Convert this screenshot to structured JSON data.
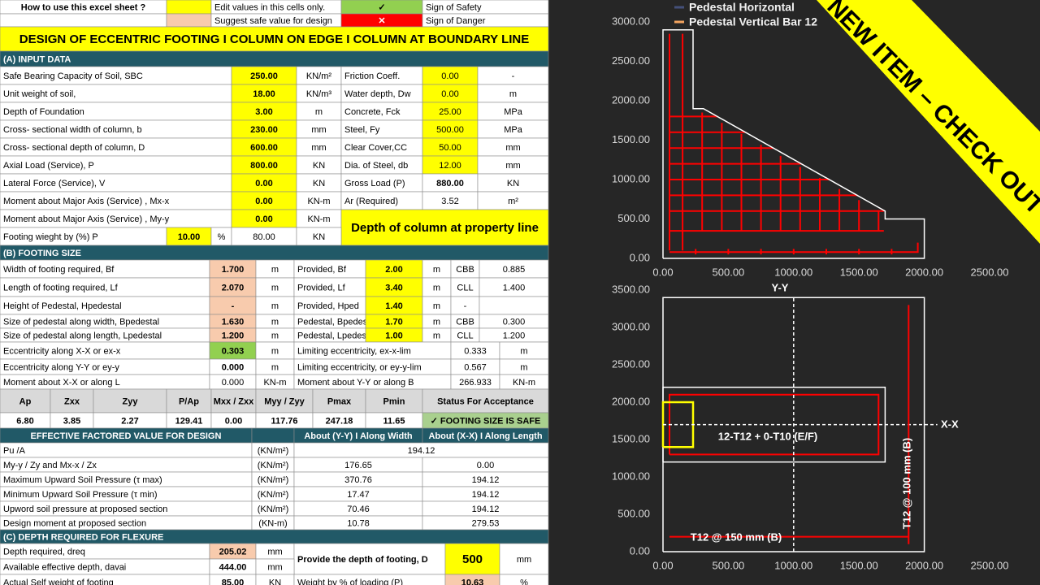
{
  "banner": "NEW ITEM – CHECK OUT",
  "sheet": {
    "rows": [
      [
        "How to use this excel sheet ?",
        "Edit values in this cells only.",
        "✓",
        "Sign of Safety"
      ],
      [
        "Suggest safe value for design",
        "✕",
        "Sign of Danger"
      ],
      [
        "DESIGN OF ECCENTRIC FOOTING I COLUMN ON EDGE I COLUMN AT BOUNDARY LINE"
      ],
      [
        "(A) INPUT DATA"
      ],
      [
        "Safe Bearing Capacity of Soil, SBC",
        "250.00",
        "KN/m²",
        "Friction Coeff.",
        "0.00",
        "-"
      ],
      [
        "Unit weight of soil,",
        "18.00",
        "KN/m³",
        "Water depth, Dw",
        "0.00",
        "m"
      ],
      [
        "Depth of Foundation",
        "3.00",
        "m",
        "Concrete, Fck",
        "25.00",
        "MPa"
      ],
      [
        "Cross- sectional width of column, b",
        "230.00",
        "mm",
        "Steel, Fy",
        "500.00",
        "MPa"
      ],
      [
        "Cross- sectional depth of column, D",
        "600.00",
        "mm",
        "Clear Cover,CC",
        "50.00",
        "mm"
      ],
      [
        "Axial Load (Service), P",
        "800.00",
        "KN",
        "Dia. of Steel, db",
        "12.00",
        "mm"
      ],
      [
        "Lateral Force (Service), V",
        "0.00",
        "KN",
        "Gross Load (P)",
        "880.00",
        "KN"
      ],
      [
        "Moment about Major Axis (Service) , Mx-x",
        "0.00",
        "KN-m",
        "Ar (Required)",
        "3.52",
        "m²"
      ],
      [
        "Moment about Major Axis (Service) , My-y",
        "0.00",
        "KN-m",
        "Depth of column at property line"
      ],
      [
        "Footing wieght by (%) P",
        "10.00",
        "%",
        "80.00",
        "KN"
      ],
      [
        "(B) FOOTING SIZE"
      ],
      [
        "Width of footing required, Bf",
        "1.700",
        "m",
        "Provided, Bf",
        "2.00",
        "m",
        "CBB",
        "0.885"
      ],
      [
        "Length of footing required, Lf",
        "2.070",
        "m",
        "Provided, Lf",
        "3.40",
        "m",
        "CLL",
        "1.400"
      ],
      [
        "Height of Pedestal, Hpedestal",
        "-",
        "m",
        "Provided, Hped",
        "1.40",
        "m",
        "-"
      ],
      [
        "Size of pedestal along width, Bpedestal",
        "1.630",
        "m",
        "Pedestal, Bpedestal",
        "1.70",
        "m",
        "CBB",
        "0.300"
      ],
      [
        "Size of pedestal along length, Lpedestal",
        "1.200",
        "m",
        "Pedestal, Lpedestal",
        "1.00",
        "m",
        "CLL",
        "1.200"
      ],
      [
        "Eccentricity along X-X or ex-x",
        "0.303",
        "m",
        "Limiting eccentricity, ex-x-lim",
        "0.333",
        "m"
      ],
      [
        "Eccentricity along Y-Y or ey-y",
        "0.000",
        "m",
        "Limiting eccentricity, or ey-y-lim",
        "0.567",
        "m"
      ],
      [
        "Moment about X-X or along L",
        "0.000",
        "KN-m",
        "Moment about Y-Y or along B",
        "266.933",
        "KN-m"
      ],
      [
        "Ap",
        "Zxx",
        "Zyy",
        "P/Ap",
        "Mxx / Zxx",
        "Myy / Zyy",
        "Pmax",
        "Pmin",
        "Status For Acceptance"
      ],
      [
        "6.80",
        "3.85",
        "2.27",
        "129.41",
        "0.00",
        "117.76",
        "247.18",
        "11.65",
        "✓ FOOTING SIZE IS SAFE"
      ],
      [
        "EFFECTIVE FACTORED VALUE FOR DESIGN",
        "About (Y-Y) I Along Width",
        "About (X-X) I Along Length"
      ],
      [
        "Pu /A",
        "(KN/m²)",
        "194.12"
      ],
      [
        "My-y / Zy and Mx-x / Zx",
        "(KN/m²)",
        "176.65",
        "0.00"
      ],
      [
        "Maximum Upward Soil Pressure (τ max)",
        "(KN/m²)",
        "370.76",
        "194.12"
      ],
      [
        "Minimum Upward Soil Pressure (τ min)",
        "(KN/m²)",
        "17.47",
        "194.12"
      ],
      [
        "Upword soil pressure at proposed section",
        "(KN/m²)",
        "70.46",
        "194.12"
      ],
      [
        "Design moment at proposed section",
        "(KN-m)",
        "10.78",
        "279.53"
      ],
      [
        "(C) DEPTH REQUIRED FOR FLEXURE"
      ],
      [
        "Depth required, dreq",
        "205.02",
        "mm",
        "Provide the depth of footing, D",
        "500",
        "mm"
      ],
      [
        "Available effective depth, davai",
        "444.00",
        "mm"
      ],
      [
        "Actual Self weight of footing",
        "85.00",
        "KN",
        "Weight by % of loading (P)",
        "10.63",
        "%"
      ]
    ]
  },
  "chart_data": [
    {
      "type": "line",
      "xlim": [
        0,
        2500
      ],
      "xticks": [
        {
          "value": 0,
          "label": "0.00"
        },
        {
          "value": 500,
          "label": "500.00"
        },
        {
          "value": 1000,
          "label": "1000.00"
        },
        {
          "value": 1500,
          "label": "1500.00"
        },
        {
          "value": 2000,
          "label": "2000.00"
        },
        {
          "value": 2500,
          "label": "2500.00"
        }
      ],
      "ylim": [
        0,
        3000
      ],
      "yticks": [
        {
          "value": 0,
          "label": "0.00"
        },
        {
          "value": 500,
          "label": "500.00"
        },
        {
          "value": 1000,
          "label": "1000.00"
        },
        {
          "value": 1500,
          "label": "1500.00"
        },
        {
          "value": 2000,
          "label": "2000.00"
        },
        {
          "value": 2500,
          "label": "2500.00"
        },
        {
          "value": 3000,
          "label": "3000.00"
        }
      ],
      "series": [
        {
          "name": "Pedestal Horizontal",
          "color": "#ff0000",
          "marker_color": "#44507a",
          "x": [
            50,
            420,
            null,
            50,
            630,
            null,
            50,
            845,
            null,
            50,
            1060,
            null,
            50,
            1270,
            null,
            50,
            1490,
            null,
            50,
            1690,
            null,
            50,
            1690
          ],
          "values": [
            1800,
            1800,
            null,
            1600,
            1600,
            null,
            1400,
            1400,
            null,
            1200,
            1200,
            null,
            1000,
            1000,
            null,
            800,
            800,
            null,
            600,
            600,
            null,
            350,
            350
          ]
        },
        {
          "name": "Pedestal Vertical Bar 12",
          "color": "#ff0000",
          "marker_color": "#f4a460",
          "x": [
            50,
            50,
            null,
            150,
            150,
            null,
            300,
            300,
            null,
            450,
            450,
            null,
            600,
            600,
            null,
            750,
            750,
            null,
            900,
            900,
            null,
            1050,
            1050,
            null,
            1200,
            1200,
            null,
            1350,
            1350,
            null,
            1500,
            1500,
            null,
            1650,
            1650
          ],
          "values": [
            100,
            2850,
            null,
            100,
            2850,
            null,
            350,
            1850,
            null,
            350,
            1720,
            null,
            350,
            1580,
            null,
            350,
            1440,
            null,
            350,
            1300,
            null,
            350,
            1160,
            null,
            350,
            1020,
            null,
            350,
            880,
            null,
            350,
            740,
            null,
            350,
            610
          ]
        },
        {
          "color": "#ffffff",
          "x": [
            0,
            2000,
            2000,
            1700,
            1700,
            310,
            230,
            230,
            0,
            0
          ],
          "values": [
            0,
            0,
            500,
            500,
            600,
            1900,
            1900,
            2900,
            2900,
            0
          ]
        },
        {
          "color": "#ff0000",
          "x": [
            50,
            1950,
            1950,
            null,
            250,
            250,
            null,
            500,
            500,
            null,
            750,
            750,
            null,
            1000,
            1000,
            null,
            1250,
            1250,
            null,
            1500,
            1500,
            null,
            1750,
            1750
          ],
          "values": [
            80,
            80,
            200,
            null,
            50,
            120,
            null,
            50,
            120,
            null,
            50,
            120,
            null,
            50,
            120,
            null,
            50,
            120,
            null,
            50,
            120,
            null,
            50,
            120
          ]
        }
      ]
    },
    {
      "type": "line",
      "xlim": [
        0,
        2500
      ],
      "xticks": [
        {
          "value": 0,
          "label": "0.00"
        },
        {
          "value": 500,
          "label": "500.00"
        },
        {
          "value": 1000,
          "label": "1000.00"
        },
        {
          "value": 1500,
          "label": "1500.00"
        },
        {
          "value": 2000,
          "label": "2000.00"
        },
        {
          "value": 2500,
          "label": "2500.00"
        }
      ],
      "ylim": [
        0,
        3500
      ],
      "yticks": [
        {
          "value": 0,
          "label": "0.00"
        },
        {
          "value": 500,
          "label": "500.00"
        },
        {
          "value": 1000,
          "label": "1000.00"
        },
        {
          "value": 1500,
          "label": "1500.00"
        },
        {
          "value": 2000,
          "label": "2000.00"
        },
        {
          "value": 2500,
          "label": "2500.00"
        },
        {
          "value": 3000,
          "label": "3000.00"
        },
        {
          "value": 3500,
          "label": "3500.00"
        }
      ],
      "annotations": [
        "Y-Y",
        "X-X",
        "12-T12 + 0-T10 (E/F)",
        "T12 @ 150 mm (B)",
        "T12 @ 100 mm (B)"
      ],
      "series": [
        {
          "color": "#ffffff",
          "x": [
            0,
            2000,
            2000,
            0,
            0
          ],
          "values": [
            0,
            0,
            3400,
            3400,
            0
          ]
        },
        {
          "color": "#ffffff",
          "x": [
            0,
            1700,
            1700,
            0,
            0
          ],
          "values": [
            1200,
            1200,
            2200,
            2200,
            1200
          ]
        },
        {
          "color": "#ff0000",
          "x": [
            50,
            1650,
            1650,
            50,
            50
          ],
          "values": [
            1300,
            1300,
            2100,
            2100,
            1300
          ]
        },
        {
          "color": "#ffff00",
          "x": [
            0,
            230,
            230,
            0,
            0
          ],
          "values": [
            1400,
            1400,
            2000,
            2000,
            1400
          ]
        },
        {
          "color": "#ffffff",
          "dash": true,
          "x": [
            1000,
            1000,
            null,
            0,
            2100
          ],
          "values": [
            0,
            3400,
            null,
            1700,
            1700
          ]
        },
        {
          "color": "#ff0000",
          "x": [
            1880,
            1880,
            null,
            50,
            1880
          ],
          "values": [
            100,
            3300,
            null,
            200,
            200
          ]
        }
      ]
    }
  ]
}
